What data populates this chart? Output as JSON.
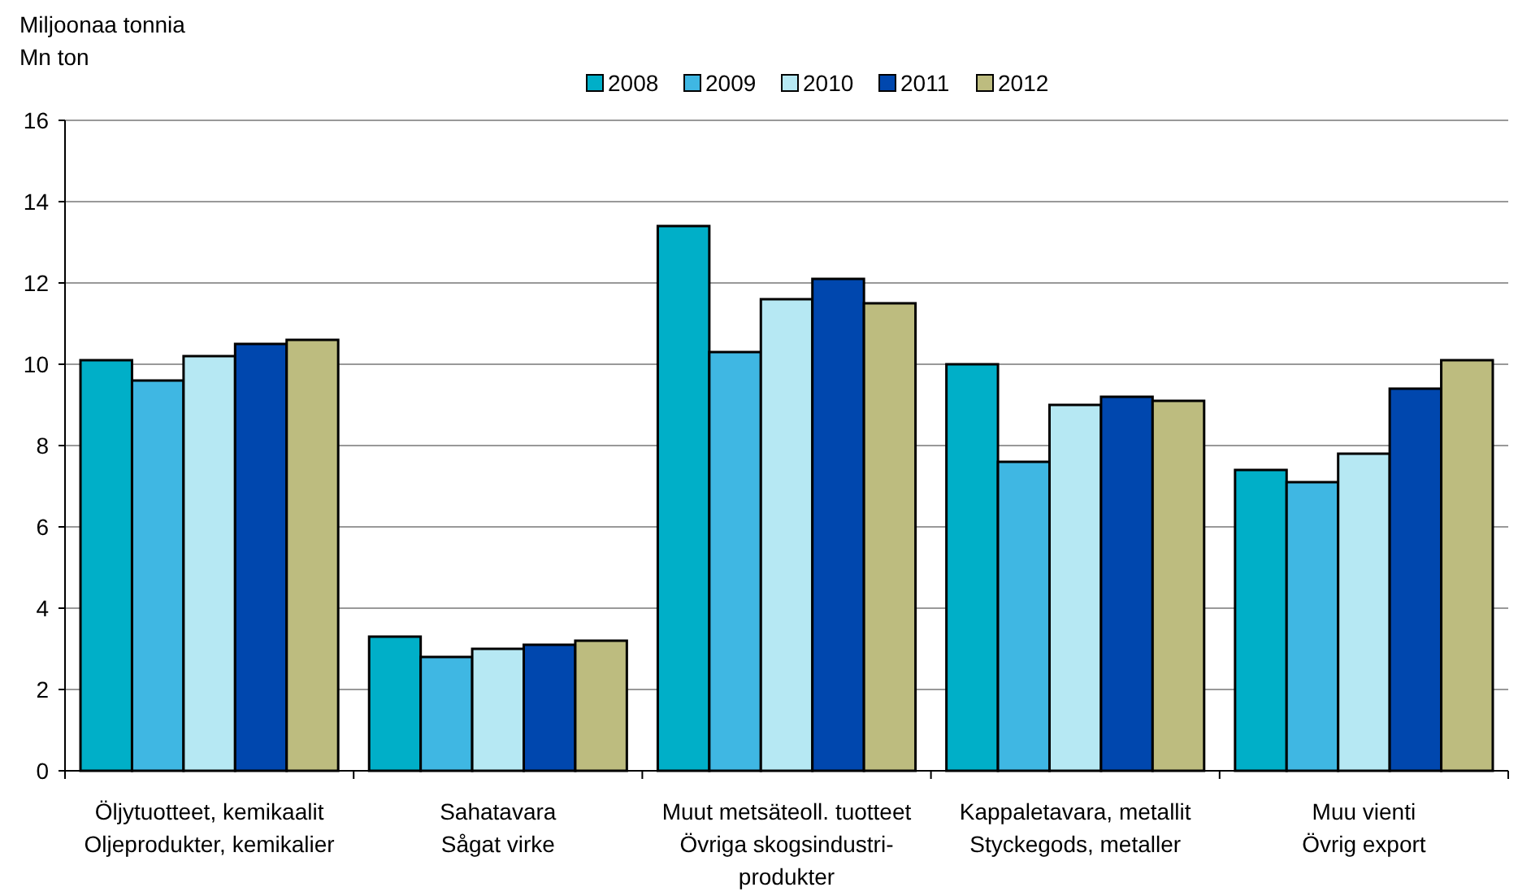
{
  "chart_data": {
    "type": "bar",
    "ylabel": "Miljoonaa tonnia\nMn ton",
    "categories": [
      "Öljytuotteet, kemikaalit\nOljeprodukter, kemikalier",
      "Sahatavara\nSågat virke",
      "Muut metsäteoll. tuotteet\nÖvriga skogsindustri-\nprodukter",
      "Kappaletavara, metallit\nStyckegods, metaller",
      "Muu vienti\nÖvrig export"
    ],
    "series": [
      {
        "name": "2008",
        "color": "#00afc8",
        "values": [
          10.1,
          3.3,
          13.4,
          10.0,
          7.4
        ]
      },
      {
        "name": "2009",
        "color": "#3fb7e3",
        "values": [
          9.6,
          2.8,
          10.3,
          7.6,
          7.1
        ]
      },
      {
        "name": "2010",
        "color": "#b6e8f3",
        "values": [
          10.2,
          3.0,
          11.6,
          9.0,
          7.8
        ]
      },
      {
        "name": "2011",
        "color": "#0047ae",
        "values": [
          10.5,
          3.1,
          12.1,
          9.2,
          9.4
        ]
      },
      {
        "name": "2012",
        "color": "#bdbc7f",
        "values": [
          10.6,
          3.2,
          11.5,
          9.1,
          10.1
        ]
      }
    ],
    "ylim": [
      0,
      16
    ],
    "yticks": [
      0,
      2,
      4,
      6,
      8,
      10,
      12,
      14,
      16
    ],
    "grid": "y",
    "legend": "top"
  }
}
